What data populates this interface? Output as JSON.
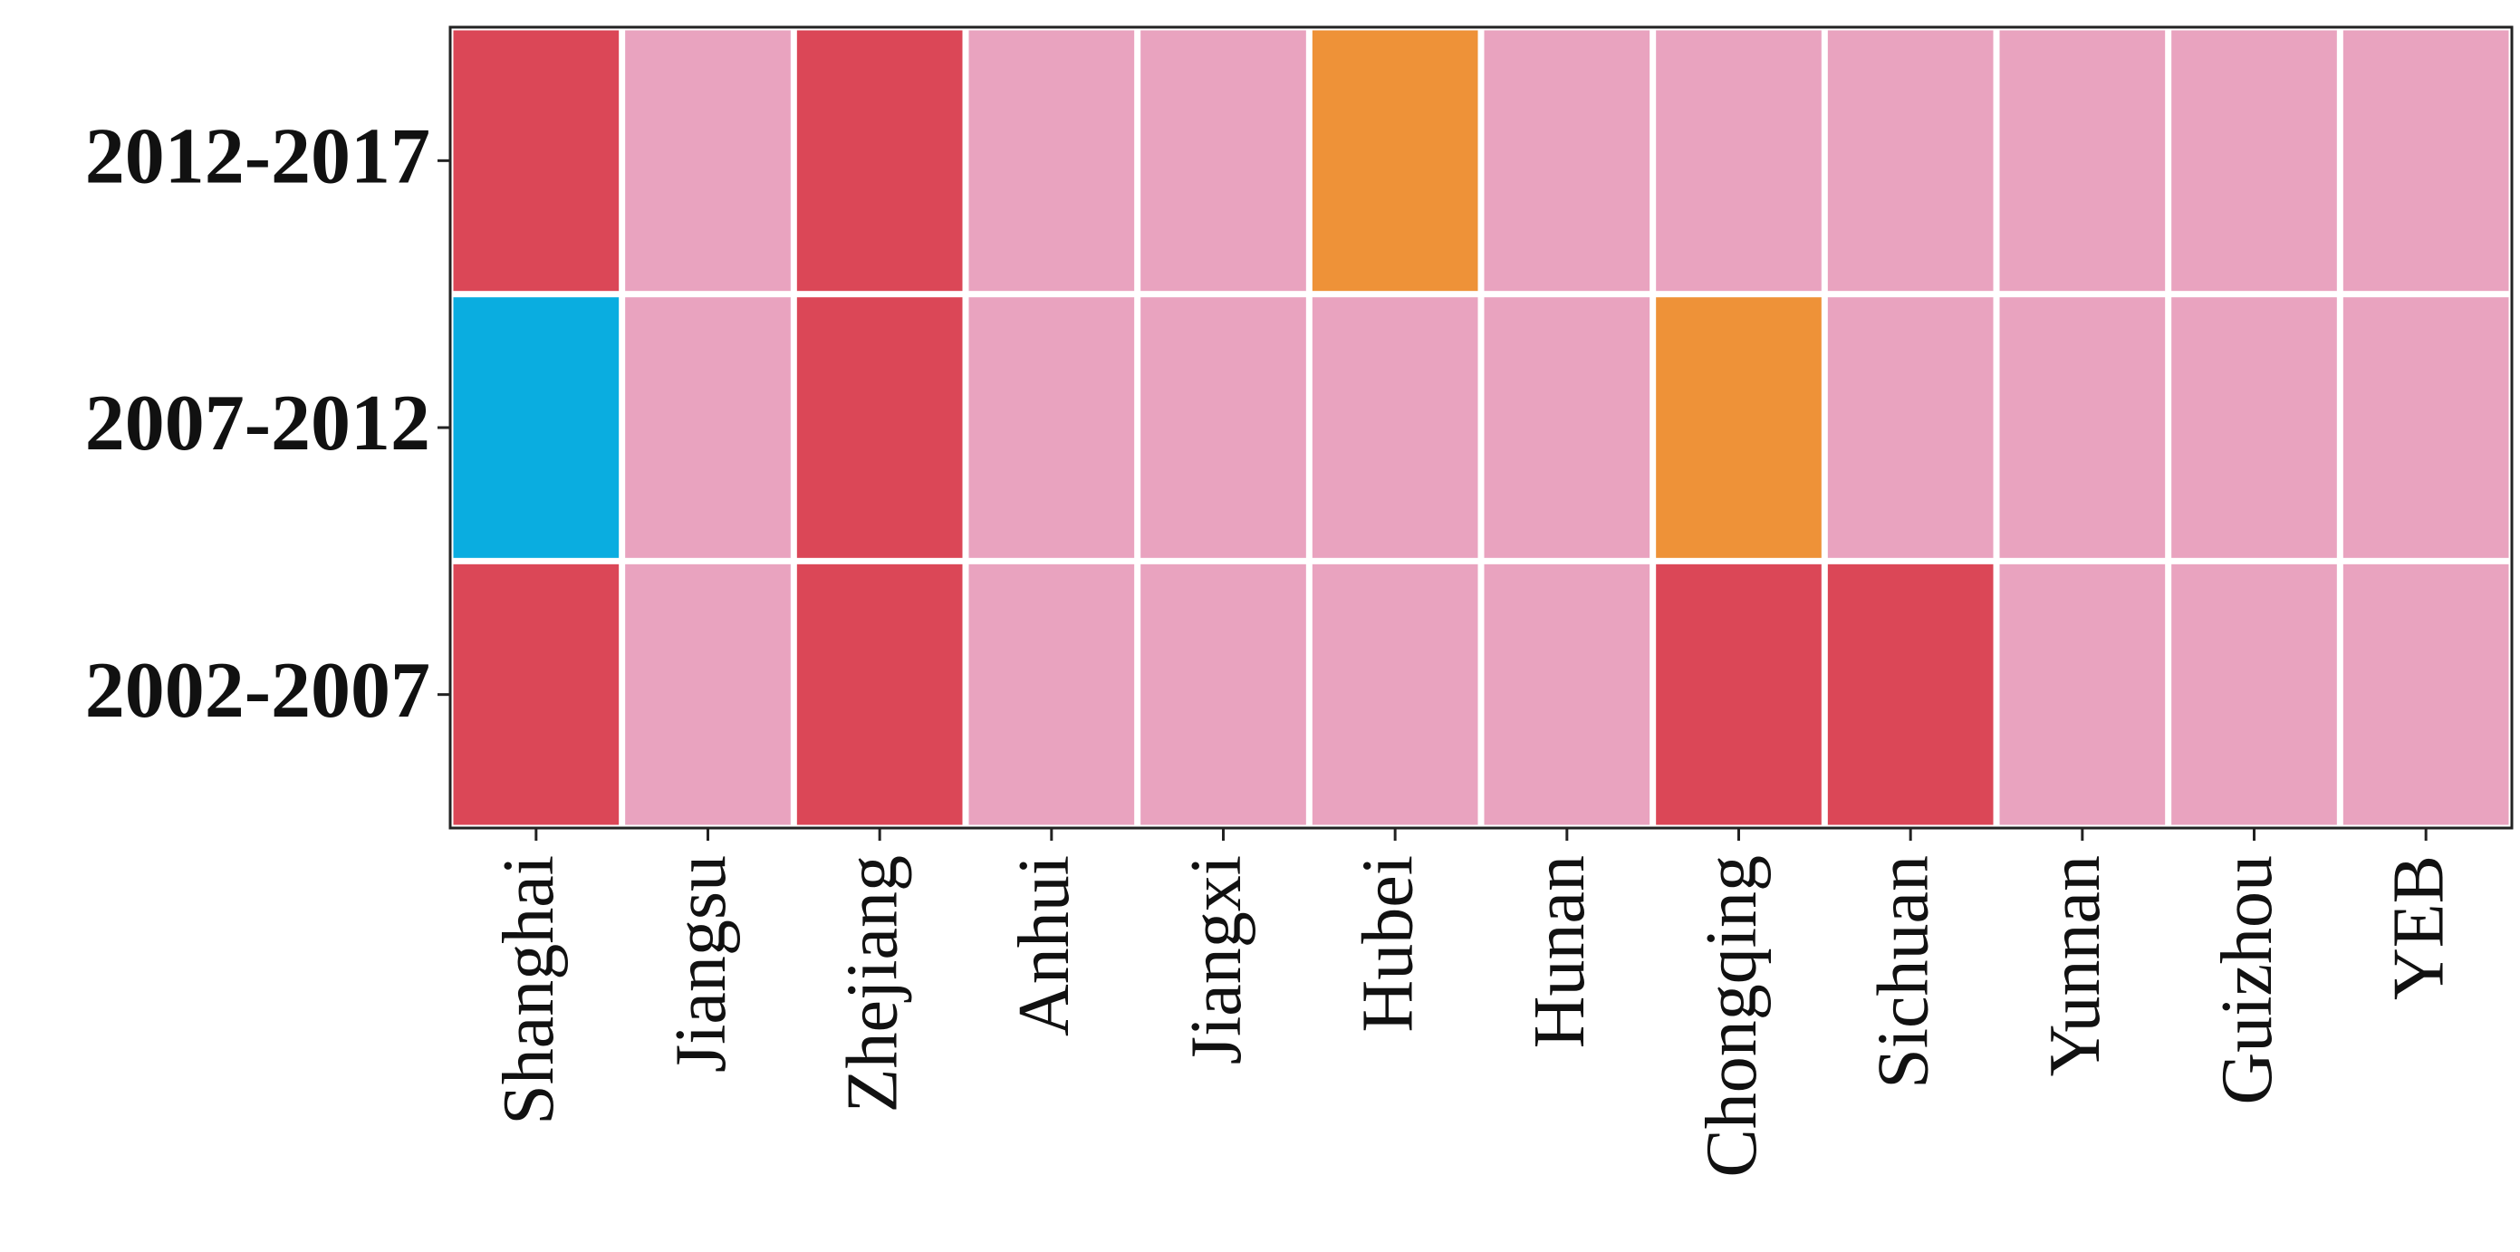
{
  "chart_data": {
    "type": "heatmap",
    "x_categories": [
      "Shanghai",
      "Jiangsu",
      "Zhejiang",
      "Anhui",
      "Jiangxi",
      "Hubei",
      "Hunan",
      "Chongqing",
      "Sichuan",
      "Yunnan",
      "Guizhou",
      "YEB"
    ],
    "y_categories": [
      "2012-2017",
      "2007-2012",
      "2002-2007"
    ],
    "cell_colors": [
      [
        "#db4757",
        "#e9a3bf",
        "#db4757",
        "#e9a3bf",
        "#e9a3bf",
        "#ee9238",
        "#e9a3bf",
        "#e9a3bf",
        "#e9a3bf",
        "#e9a3bf",
        "#e9a3bf",
        "#e9a3bf"
      ],
      [
        "#0aade0",
        "#e9a3bf",
        "#db4757",
        "#e9a3bf",
        "#e9a3bf",
        "#e9a3bf",
        "#e9a3bf",
        "#ee9238",
        "#e9a3bf",
        "#e9a3bf",
        "#e9a3bf",
        "#e9a3bf"
      ],
      [
        "#db4757",
        "#e9a3bf",
        "#db4757",
        "#e9a3bf",
        "#e9a3bf",
        "#e9a3bf",
        "#e9a3bf",
        "#db4757",
        "#db4757",
        "#e9a3bf",
        "#e9a3bf",
        "#e9a3bf"
      ]
    ]
  }
}
